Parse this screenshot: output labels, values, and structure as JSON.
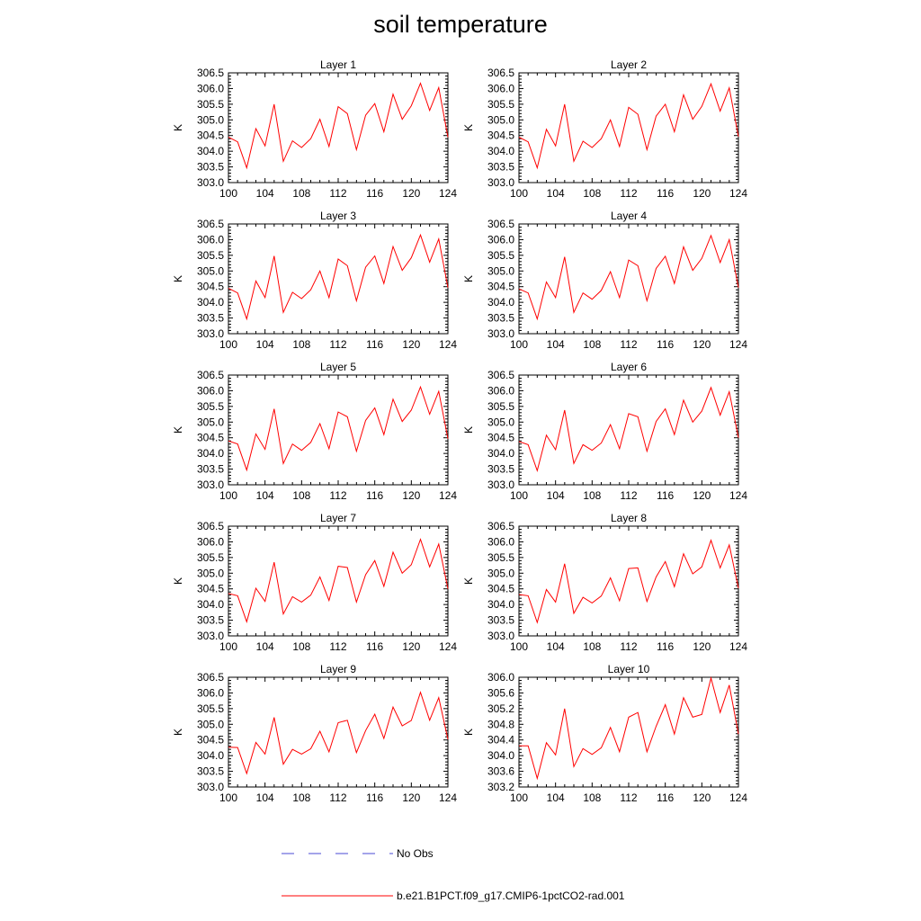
{
  "page": {
    "title": "soil temperature"
  },
  "legend": [
    {
      "label": "No Obs",
      "color": "#4a4ad6",
      "dash": "dashed"
    },
    {
      "label": "b.e21.B1PCT.f09_g17.CMIP6-1pctCO2-rad.001",
      "color": "#ff0000",
      "dash": "solid"
    }
  ],
  "chart_data": [
    {
      "type": "line",
      "title": "Layer 1",
      "xlabel": "",
      "ylabel": "K",
      "xlim": [
        100,
        124
      ],
      "ylim": [
        303.0,
        306.5
      ],
      "xticks": [
        "100",
        "104",
        "108",
        "112",
        "116",
        "120",
        "124"
      ],
      "yticks": [
        "303.0",
        "303.5",
        "304.0",
        "304.5",
        "305.0",
        "305.5",
        "306.0",
        "306.5"
      ],
      "x": [
        100,
        101,
        102,
        103,
        104,
        105,
        106,
        107,
        108,
        109,
        110,
        111,
        112,
        113,
        114,
        115,
        116,
        117,
        118,
        119,
        120,
        121,
        122,
        123,
        124
      ],
      "series": [
        {
          "values": [
            304.45,
            304.3,
            303.47,
            304.72,
            304.17,
            305.5,
            303.68,
            304.33,
            304.12,
            304.4,
            305.02,
            304.15,
            305.42,
            305.2,
            304.05,
            305.15,
            305.52,
            304.62,
            305.82,
            305.02,
            305.45,
            306.17,
            305.3,
            306.03,
            304.45
          ]
        }
      ]
    },
    {
      "type": "line",
      "title": "Layer 2",
      "xlabel": "",
      "ylabel": "K",
      "xlim": [
        100,
        124
      ],
      "ylim": [
        303.0,
        306.5
      ],
      "xticks": [
        "100",
        "104",
        "108",
        "112",
        "116",
        "120",
        "124"
      ],
      "yticks": [
        "303.0",
        "303.5",
        "304.0",
        "304.5",
        "305.0",
        "305.5",
        "306.0",
        "306.5"
      ],
      "x": [
        100,
        101,
        102,
        103,
        104,
        105,
        106,
        107,
        108,
        109,
        110,
        111,
        112,
        113,
        114,
        115,
        116,
        117,
        118,
        119,
        120,
        121,
        122,
        123,
        124
      ],
      "series": [
        {
          "values": [
            304.45,
            304.3,
            303.47,
            304.7,
            304.17,
            305.5,
            303.68,
            304.32,
            304.12,
            304.4,
            305.0,
            304.15,
            305.4,
            305.18,
            304.05,
            305.12,
            305.5,
            304.62,
            305.8,
            305.02,
            305.43,
            306.15,
            305.28,
            306.02,
            304.47
          ]
        }
      ]
    },
    {
      "type": "line",
      "title": "Layer 3",
      "xlabel": "",
      "ylabel": "K",
      "xlim": [
        100,
        124
      ],
      "ylim": [
        303.0,
        306.5
      ],
      "xticks": [
        "100",
        "104",
        "108",
        "112",
        "116",
        "120",
        "124"
      ],
      "yticks": [
        "303.0",
        "303.5",
        "304.0",
        "304.5",
        "305.0",
        "305.5",
        "306.0",
        "306.5"
      ],
      "x": [
        100,
        101,
        102,
        103,
        104,
        105,
        106,
        107,
        108,
        109,
        110,
        111,
        112,
        113,
        114,
        115,
        116,
        117,
        118,
        119,
        120,
        121,
        122,
        123,
        124
      ],
      "series": [
        {
          "values": [
            304.45,
            304.3,
            303.47,
            304.68,
            304.15,
            305.48,
            303.68,
            304.32,
            304.12,
            304.4,
            305.0,
            304.15,
            305.38,
            305.17,
            304.05,
            305.12,
            305.48,
            304.6,
            305.78,
            305.02,
            305.42,
            306.15,
            305.28,
            306.02,
            304.47
          ]
        }
      ]
    },
    {
      "type": "line",
      "title": "Layer 4",
      "xlabel": "",
      "ylabel": "K",
      "xlim": [
        100,
        124
      ],
      "ylim": [
        303.0,
        306.5
      ],
      "xticks": [
        "100",
        "104",
        "108",
        "112",
        "116",
        "120",
        "124"
      ],
      "yticks": [
        "303.0",
        "303.5",
        "304.0",
        "304.5",
        "305.0",
        "305.5",
        "306.0",
        "306.5"
      ],
      "x": [
        100,
        101,
        102,
        103,
        104,
        105,
        106,
        107,
        108,
        109,
        110,
        111,
        112,
        113,
        114,
        115,
        116,
        117,
        118,
        119,
        120,
        121,
        122,
        123,
        124
      ],
      "series": [
        {
          "values": [
            304.43,
            304.3,
            303.47,
            304.65,
            304.15,
            305.45,
            303.68,
            304.3,
            304.1,
            304.38,
            304.98,
            304.15,
            305.35,
            305.17,
            304.05,
            305.08,
            305.47,
            304.6,
            305.77,
            305.02,
            305.4,
            306.13,
            305.27,
            306.0,
            304.47
          ]
        }
      ]
    },
    {
      "type": "line",
      "title": "Layer 5",
      "xlabel": "",
      "ylabel": "K",
      "xlim": [
        100,
        124
      ],
      "ylim": [
        303.0,
        306.5
      ],
      "xticks": [
        "100",
        "104",
        "108",
        "112",
        "116",
        "120",
        "124"
      ],
      "yticks": [
        "303.0",
        "303.5",
        "304.0",
        "304.5",
        "305.0",
        "305.5",
        "306.0",
        "306.5"
      ],
      "x": [
        100,
        101,
        102,
        103,
        104,
        105,
        106,
        107,
        108,
        109,
        110,
        111,
        112,
        113,
        114,
        115,
        116,
        117,
        118,
        119,
        120,
        121,
        122,
        123,
        124
      ],
      "series": [
        {
          "values": [
            304.4,
            304.3,
            303.47,
            304.62,
            304.13,
            305.42,
            303.68,
            304.3,
            304.1,
            304.35,
            304.95,
            304.15,
            305.32,
            305.17,
            304.07,
            305.05,
            305.45,
            304.6,
            305.73,
            305.02,
            305.38,
            306.12,
            305.25,
            305.98,
            304.47
          ]
        }
      ]
    },
    {
      "type": "line",
      "title": "Layer 6",
      "xlabel": "",
      "ylabel": "K",
      "xlim": [
        100,
        124
      ],
      "ylim": [
        303.0,
        306.5
      ],
      "xticks": [
        "100",
        "104",
        "108",
        "112",
        "116",
        "120",
        "124"
      ],
      "yticks": [
        "303.0",
        "303.5",
        "304.0",
        "304.5",
        "305.0",
        "305.5",
        "306.0",
        "306.5"
      ],
      "x": [
        100,
        101,
        102,
        103,
        104,
        105,
        106,
        107,
        108,
        109,
        110,
        111,
        112,
        113,
        114,
        115,
        116,
        117,
        118,
        119,
        120,
        121,
        122,
        123,
        124
      ],
      "series": [
        {
          "values": [
            304.38,
            304.28,
            303.45,
            304.58,
            304.12,
            305.38,
            303.68,
            304.28,
            304.1,
            304.33,
            304.92,
            304.15,
            305.27,
            305.17,
            304.07,
            305.02,
            305.42,
            304.6,
            305.7,
            305.0,
            305.35,
            306.1,
            305.22,
            305.97,
            304.5
          ]
        }
      ]
    },
    {
      "type": "line",
      "title": "Layer 7",
      "xlabel": "",
      "ylabel": "K",
      "xlim": [
        100,
        124
      ],
      "ylim": [
        303.0,
        306.5
      ],
      "xticks": [
        "100",
        "104",
        "108",
        "112",
        "116",
        "120",
        "124"
      ],
      "yticks": [
        "303.0",
        "303.5",
        "304.0",
        "304.5",
        "305.0",
        "305.5",
        "306.0",
        "306.5"
      ],
      "x": [
        100,
        101,
        102,
        103,
        104,
        105,
        106,
        107,
        108,
        109,
        110,
        111,
        112,
        113,
        114,
        115,
        116,
        117,
        118,
        119,
        120,
        121,
        122,
        123,
        124
      ],
      "series": [
        {
          "values": [
            304.35,
            304.28,
            303.45,
            304.52,
            304.1,
            305.35,
            303.7,
            304.25,
            304.08,
            304.3,
            304.88,
            304.13,
            305.22,
            305.18,
            304.08,
            304.95,
            305.4,
            304.58,
            305.67,
            305.0,
            305.27,
            306.08,
            305.2,
            305.93,
            304.5
          ]
        }
      ]
    },
    {
      "type": "line",
      "title": "Layer 8",
      "xlabel": "",
      "ylabel": "K",
      "xlim": [
        100,
        124
      ],
      "ylim": [
        303.0,
        306.5
      ],
      "xticks": [
        "100",
        "104",
        "108",
        "112",
        "116",
        "120",
        "124"
      ],
      "yticks": [
        "303.0",
        "303.5",
        "304.0",
        "304.5",
        "305.0",
        "305.5",
        "306.0",
        "306.5"
      ],
      "x": [
        100,
        101,
        102,
        103,
        104,
        105,
        106,
        107,
        108,
        109,
        110,
        111,
        112,
        113,
        114,
        115,
        116,
        117,
        118,
        119,
        120,
        121,
        122,
        123,
        124
      ],
      "series": [
        {
          "values": [
            304.32,
            304.28,
            303.43,
            304.48,
            304.08,
            305.3,
            303.72,
            304.23,
            304.05,
            304.27,
            304.85,
            304.12,
            305.15,
            305.17,
            304.1,
            304.88,
            305.37,
            304.57,
            305.62,
            304.98,
            305.2,
            306.05,
            305.17,
            305.9,
            304.52
          ]
        }
      ]
    },
    {
      "type": "line",
      "title": "Layer 9",
      "xlabel": "",
      "ylabel": "K",
      "xlim": [
        100,
        124
      ],
      "ylim": [
        303.0,
        306.5
      ],
      "xticks": [
        "100",
        "104",
        "108",
        "112",
        "116",
        "120",
        "124"
      ],
      "yticks": [
        "303.0",
        "303.5",
        "304.0",
        "304.5",
        "305.0",
        "305.5",
        "306.0",
        "306.5"
      ],
      "x": [
        100,
        101,
        102,
        103,
        104,
        105,
        106,
        107,
        108,
        109,
        110,
        111,
        112,
        113,
        114,
        115,
        116,
        117,
        118,
        119,
        120,
        121,
        122,
        123,
        124
      ],
      "series": [
        {
          "values": [
            304.27,
            304.26,
            303.43,
            304.42,
            304.05,
            305.22,
            303.73,
            304.2,
            304.05,
            304.22,
            304.78,
            304.12,
            305.05,
            305.13,
            304.1,
            304.8,
            305.32,
            304.55,
            305.55,
            304.95,
            305.12,
            306.02,
            305.13,
            305.85,
            304.52
          ]
        }
      ]
    },
    {
      "type": "line",
      "title": "Layer 10",
      "xlabel": "",
      "ylabel": "K",
      "xlim": [
        100,
        124
      ],
      "ylim": [
        303.2,
        306.0
      ],
      "xticks": [
        "100",
        "104",
        "108",
        "112",
        "116",
        "120",
        "124"
      ],
      "yticks": [
        "303.2",
        "303.6",
        "304.0",
        "304.4",
        "304.8",
        "305.2",
        "305.6",
        "306.0"
      ],
      "x": [
        100,
        101,
        102,
        103,
        104,
        105,
        106,
        107,
        108,
        109,
        110,
        111,
        112,
        113,
        114,
        115,
        116,
        117,
        118,
        119,
        120,
        121,
        122,
        123,
        124
      ],
      "series": [
        {
          "values": [
            304.25,
            304.25,
            303.42,
            304.33,
            304.02,
            305.2,
            303.72,
            304.18,
            304.03,
            304.2,
            304.72,
            304.1,
            304.98,
            305.1,
            304.1,
            304.75,
            305.3,
            304.55,
            305.48,
            304.98,
            305.05,
            305.98,
            305.1,
            305.8,
            304.55
          ]
        }
      ]
    }
  ]
}
